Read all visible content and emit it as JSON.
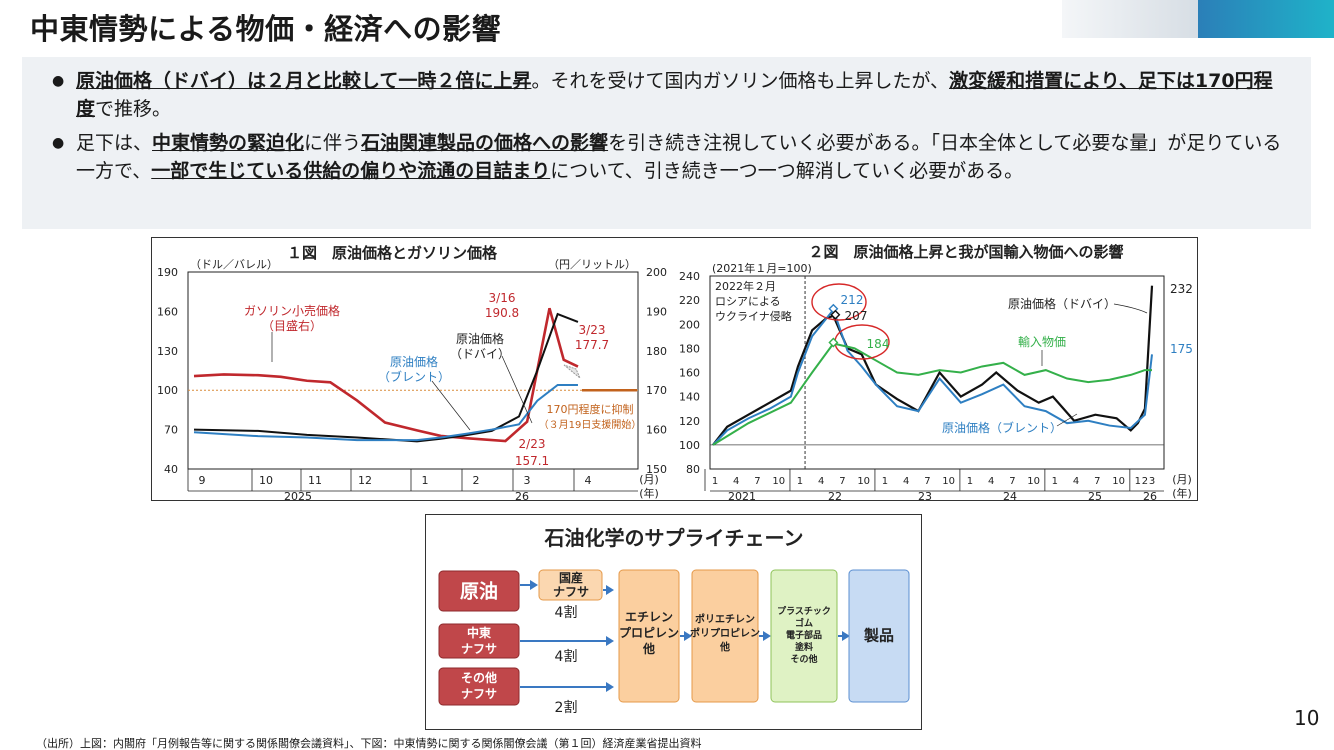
{
  "title": "中東情勢による物価・経済への影響",
  "bullet1": {
    "s1": "原油価格（ドバイ）は２月と比較して一時２倍に上昇",
    "s2": "。それを受けて国内ガソリン価格も上昇したが、",
    "s3": "激変緩和措置により、足下は170円程度",
    "s4": "で推移。"
  },
  "bullet2": {
    "s1": "足下は、",
    "s2": "中東情勢の緊迫化",
    "s3": "に伴う",
    "s4": "石油関連製品の価格への影響",
    "s5": "を引き続き注視していく必要がある。「日本全体として必要な量」が足りている一方で、",
    "s6": "一部で生じている供給の偏りや流通の目詰まり",
    "s7": "について、引き続き一つ一つ解消していく必要がある。"
  },
  "chart_data": [
    {
      "type": "line",
      "title": "１図　原油価格とガソリン価格",
      "left_axis_label": "（ドル／バレル）",
      "right_axis_label": "（円／リットル）",
      "left_ylim": [
        40,
        190
      ],
      "left_ticks": [
        "40",
        "70",
        "100",
        "130",
        "160",
        "190"
      ],
      "right_ylim": [
        150,
        200
      ],
      "right_ticks": [
        "150",
        "160",
        "170",
        "180",
        "190",
        "200"
      ],
      "x_tick_labels": [
        "9",
        "10",
        "11",
        "12",
        "1",
        "2",
        "3",
        "4"
      ],
      "x_year_labels": [
        "2025",
        "26"
      ],
      "x_unit": "(月)",
      "x_year_unit": "(年)",
      "series": [
        {
          "name": "ガソリン小売価格",
          "name_note": "（目盛右）",
          "axis": "right",
          "color": "#c0282d",
          "x": [
            "2025-09-01",
            "2025-09-15",
            "2025-10-01",
            "2025-10-15",
            "2025-11-01",
            "2025-11-15",
            "2025-12-01",
            "2025-12-15",
            "2026-01-01",
            "2026-01-15",
            "2026-02-01",
            "2026-02-23",
            "2026-03-05",
            "2026-03-16",
            "2026-03-23",
            "2026-03-30"
          ],
          "values": [
            173.6,
            174,
            173.8,
            173.4,
            172.4,
            172,
            167.4,
            161.8,
            159.8,
            158.4,
            157.8,
            157.1,
            162,
            190.8,
            177.7,
            176
          ]
        },
        {
          "name": "原油価格（ドバイ）",
          "axis": "left",
          "color": "#111111",
          "x": [
            "2025-09-01",
            "2025-10-01",
            "2025-11-01",
            "2025-12-01",
            "2026-01-01",
            "2026-01-15",
            "2026-02-01",
            "2026-02-15",
            "2026-03-01",
            "2026-03-10",
            "2026-03-20",
            "2026-03-30"
          ],
          "values": [
            70,
            69,
            66,
            64,
            61,
            63,
            66,
            69,
            80,
            115,
            158,
            152
          ]
        },
        {
          "name": "原油価格",
          "name_note": "（ブレント）",
          "axis": "left",
          "color": "#2e7fc2",
          "x": [
            "2025-09-01",
            "2025-10-01",
            "2025-11-01",
            "2025-12-01",
            "2026-01-01",
            "2026-01-15",
            "2026-02-01",
            "2026-02-15",
            "2026-03-01",
            "2026-03-10",
            "2026-03-20",
            "2026-03-30"
          ],
          "values": [
            68,
            65,
            64,
            62,
            62,
            64,
            67,
            70,
            74,
            92,
            104,
            104
          ]
        }
      ],
      "annotations": [
        {
          "text": "3/16",
          "value": "190.8"
        },
        {
          "text": "3/23",
          "value": "177.7"
        },
        {
          "text": "2/23",
          "value": "157.1"
        },
        {
          "text": "170円程度に抑制",
          "sub": "（３月19日支援開始）"
        }
      ]
    },
    {
      "type": "line",
      "title": "２図　原油価格上昇と我が国輸入物価への影響",
      "index_note": "(2021年１月=100)",
      "ylim": [
        80,
        240
      ],
      "y_ticks": [
        "80",
        "100",
        "120",
        "140",
        "160",
        "180",
        "200",
        "220",
        "240"
      ],
      "x_tick_labels": [
        "1",
        "4",
        "7",
        "10",
        "1",
        "4",
        "7",
        "10",
        "1",
        "4",
        "7",
        "10",
        "1",
        "4",
        "7",
        "10",
        "1",
        "4",
        "7",
        "10",
        "1",
        "2",
        "3"
      ],
      "x_year_labels": [
        "2021",
        "22",
        "23",
        "24",
        "25",
        "26"
      ],
      "x_unit": "(月)",
      "x_year_unit": "(年)",
      "event_label": [
        "2022年２月",
        "ロシアによる",
        "ウクライナ侵略"
      ],
      "series": [
        {
          "name": "原油価格（ドバイ）",
          "color": "#111111",
          "end_label": "232",
          "x": [
            "2021-01",
            "2021-03",
            "2021-06",
            "2021-09",
            "2021-12",
            "2022-01",
            "2022-03",
            "2022-05",
            "2022-06",
            "2022-08",
            "2022-10",
            "2022-12",
            "2023-03",
            "2023-06",
            "2023-09",
            "2023-12",
            "2024-03",
            "2024-05",
            "2024-08",
            "2024-11",
            "2025-01",
            "2025-04",
            "2025-07",
            "2025-10",
            "2025-12",
            "2026-01",
            "2026-02",
            "2026-03"
          ],
          "values": [
            100,
            115,
            125,
            135,
            145,
            165,
            195,
            205,
            207,
            180,
            175,
            150,
            138,
            128,
            160,
            140,
            150,
            160,
            145,
            135,
            140,
            120,
            125,
            122,
            112,
            118,
            130,
            232
          ]
        },
        {
          "name": "原油価格（ブレント）",
          "color": "#2e7fc2",
          "end_label": "175",
          "x": [
            "2021-01",
            "2021-03",
            "2021-06",
            "2021-09",
            "2021-12",
            "2022-01",
            "2022-03",
            "2022-06",
            "2022-08",
            "2022-10",
            "2022-12",
            "2023-03",
            "2023-06",
            "2023-09",
            "2023-12",
            "2024-03",
            "2024-06",
            "2024-09",
            "2024-12",
            "2025-03",
            "2025-06",
            "2025-09",
            "2025-12",
            "2026-02",
            "2026-03"
          ],
          "values": [
            100,
            112,
            122,
            130,
            140,
            160,
            190,
            212,
            178,
            165,
            150,
            132,
            128,
            155,
            135,
            142,
            150,
            132,
            128,
            118,
            120,
            116,
            114,
            125,
            175
          ]
        },
        {
          "name": "輸入物価",
          "color": "#34b04a",
          "x": [
            "2021-01",
            "2021-06",
            "2021-12",
            "2022-03",
            "2022-06",
            "2022-09",
            "2022-12",
            "2023-03",
            "2023-06",
            "2023-09",
            "2023-12",
            "2024-03",
            "2024-06",
            "2024-09",
            "2024-12",
            "2025-03",
            "2025-06",
            "2025-09",
            "2025-12",
            "2026-02",
            "2026-03"
          ],
          "values": [
            100,
            118,
            135,
            160,
            184,
            180,
            170,
            160,
            158,
            162,
            160,
            165,
            168,
            158,
            162,
            155,
            152,
            154,
            158,
            162,
            162
          ]
        }
      ],
      "markers": [
        {
          "label": "212"
        },
        {
          "label": "207"
        },
        {
          "label": "184"
        }
      ]
    }
  ],
  "supply_chain": {
    "title": "石油化学のサプライチェーン",
    "sources": [
      "原油",
      "中東|ナフサ",
      "その他|ナフサ"
    ],
    "domestic": "国産|ナフサ",
    "shares": [
      "4割",
      "4割",
      "2割"
    ],
    "stage1": "エチレン|プロピレン|他",
    "stage2": "ポリエチレン|ポリプロピレン|他",
    "stage3": "プラスチック|ゴム|電子部品|塗料|その他",
    "product": "製品"
  },
  "page_number": "10",
  "source_note": "（出所）上図：内閣府「月例報告等に関する関係閣僚会議資料」、下図：中東情勢に関する関係閣僚会議（第１回）経済産業省提出資料"
}
